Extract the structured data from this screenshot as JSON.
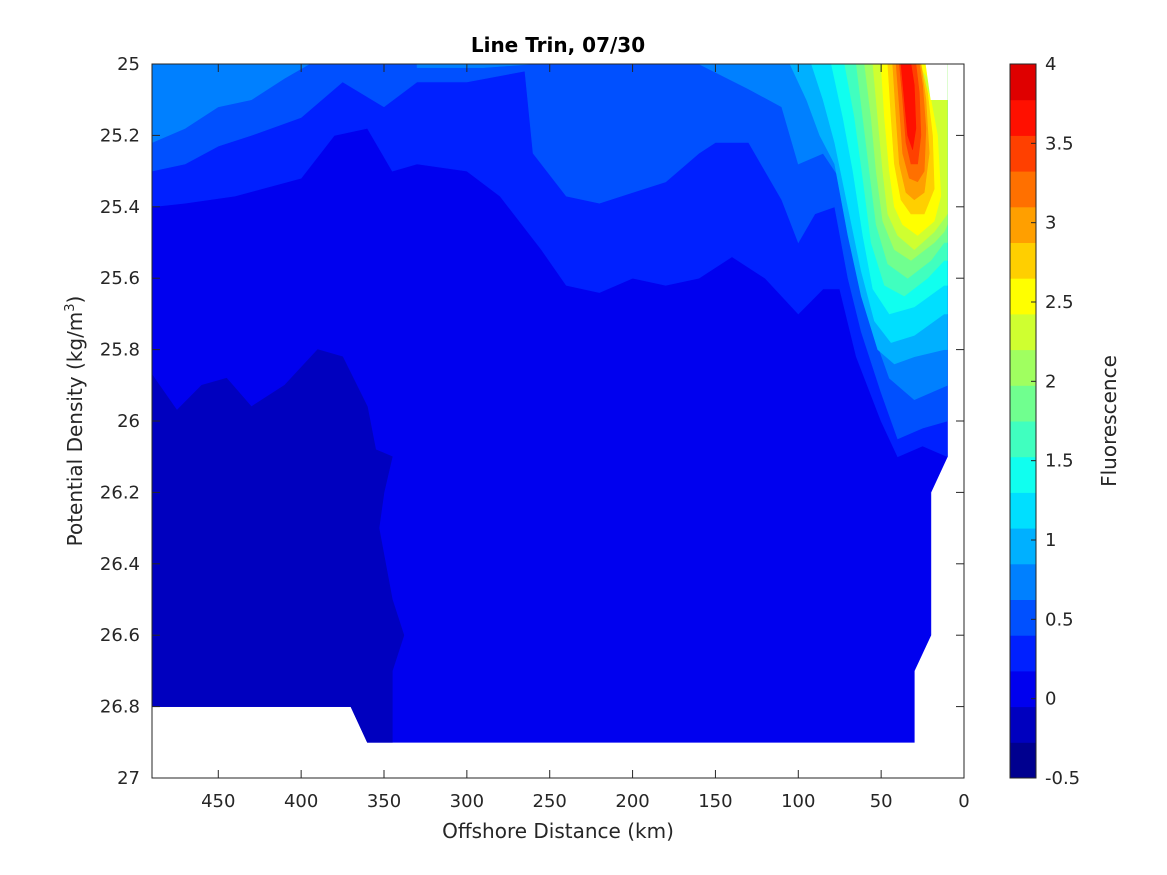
{
  "chart_data": {
    "type": "contourf",
    "title": "Line Trin, 07/30",
    "xlabel": "Offshore Distance (km)",
    "ylabel_main": "Potential Density (kg/m",
    "ylabel_sup": "3",
    "ylabel_close": ")",
    "xlim": [
      490,
      0
    ],
    "ylim": [
      25,
      27
    ],
    "x_reversed": true,
    "y_reversed": true,
    "x_ticks": [
      450,
      400,
      350,
      300,
      250,
      200,
      150,
      100,
      50,
      0
    ],
    "y_ticks": [
      25,
      25.2,
      25.4,
      25.6,
      25.8,
      26,
      26.2,
      26.4,
      26.6,
      26.8,
      27
    ],
    "y_tick_labels": [
      "25",
      "25.2",
      "25.4",
      "25.6",
      "25.8",
      "26",
      "26.2",
      "26.4",
      "26.6",
      "26.8",
      "27"
    ],
    "colorbar": {
      "label": "Fluorescence",
      "range": [
        -0.5,
        4
      ],
      "ticks": [
        -0.5,
        0,
        0.5,
        1,
        1.5,
        2,
        2.5,
        3,
        3.5,
        4
      ],
      "tick_labels": [
        "-0.5",
        "0",
        "0.5",
        "1",
        "1.5",
        "2",
        "2.5",
        "3",
        "3.5",
        "4"
      ],
      "level_step": 0.25,
      "colors": [
        "#00008f",
        "#0000bf",
        "#0000ef",
        "#0020ff",
        "#0050ff",
        "#0080ff",
        "#00b0ff",
        "#00dfff",
        "#10ffef",
        "#40ffbf",
        "#70ff8f",
        "#a0ff60",
        "#cfff30",
        "#ffff00",
        "#ffcf00",
        "#ff9f00",
        "#ff7000",
        "#ff4000",
        "#ff1000",
        "#df0000",
        "#af0000"
      ]
    },
    "regions": [
      {
        "level": 0,
        "points": [
          [
            490,
            25
          ],
          [
            10,
            25
          ],
          [
            10,
            26.1
          ],
          [
            20,
            26.2
          ],
          [
            20,
            26.6
          ],
          [
            30,
            26.7
          ],
          [
            30,
            26.9
          ],
          [
            360,
            26.9
          ],
          [
            370,
            26.8
          ],
          [
            490,
            26.8
          ]
        ]
      },
      {
        "level": -1,
        "points": [
          [
            490,
            25.87
          ],
          [
            475,
            25.97
          ],
          [
            460,
            25.9
          ],
          [
            445,
            25.88
          ],
          [
            430,
            25.96
          ],
          [
            410,
            25.9
          ],
          [
            390,
            25.8
          ],
          [
            375,
            25.82
          ],
          [
            360,
            25.96
          ],
          [
            355,
            26.08
          ],
          [
            345,
            26.1
          ],
          [
            350,
            26.2
          ],
          [
            353,
            26.3
          ],
          [
            345,
            26.5
          ],
          [
            338,
            26.6
          ],
          [
            345,
            26.7
          ],
          [
            345,
            26.9
          ],
          [
            360,
            26.9
          ],
          [
            370,
            26.8
          ],
          [
            490,
            26.8
          ]
        ]
      },
      {
        "level": 1,
        "points": [
          [
            490,
            25
          ],
          [
            490,
            25.4
          ],
          [
            470,
            25.39
          ],
          [
            440,
            25.37
          ],
          [
            400,
            25.32
          ],
          [
            380,
            25.2
          ],
          [
            360,
            25.18
          ],
          [
            345,
            25.3
          ],
          [
            330,
            25.28
          ],
          [
            300,
            25.3
          ],
          [
            280,
            25.37
          ],
          [
            255,
            25.52
          ],
          [
            240,
            25.62
          ],
          [
            220,
            25.64
          ],
          [
            200,
            25.6
          ],
          [
            180,
            25.62
          ],
          [
            160,
            25.6
          ],
          [
            140,
            25.54
          ],
          [
            120,
            25.6
          ],
          [
            100,
            25.7
          ],
          [
            85,
            25.63
          ],
          [
            75,
            25.63
          ],
          [
            65,
            25.82
          ],
          [
            50,
            26
          ],
          [
            40,
            26.1
          ],
          [
            25,
            26.07
          ],
          [
            10,
            26.1
          ],
          [
            10,
            25
          ],
          [
            250,
            25
          ],
          [
            430,
            25
          ]
        ]
      },
      {
        "level": 2,
        "points": [
          [
            490,
            25
          ],
          [
            490,
            25.3
          ],
          [
            470,
            25.28
          ],
          [
            450,
            25.23
          ],
          [
            430,
            25.2
          ],
          [
            400,
            25.15
          ],
          [
            375,
            25.05
          ],
          [
            350,
            25.12
          ],
          [
            330,
            25.05
          ],
          [
            300,
            25.05
          ],
          [
            265,
            25.02
          ],
          [
            260,
            25.25
          ],
          [
            240,
            25.37
          ],
          [
            220,
            25.39
          ],
          [
            200,
            25.36
          ],
          [
            180,
            25.33
          ],
          [
            160,
            25.25
          ],
          [
            150,
            25.22
          ],
          [
            130,
            25.22
          ],
          [
            110,
            25.38
          ],
          [
            100,
            25.5
          ],
          [
            90,
            25.42
          ],
          [
            78,
            25.4
          ],
          [
            70,
            25.6
          ],
          [
            62,
            25.75
          ],
          [
            50,
            25.92
          ],
          [
            40,
            26.05
          ],
          [
            25,
            26.02
          ],
          [
            10,
            26.0
          ],
          [
            10,
            25
          ]
        ]
      },
      {
        "level": 3,
        "points": [
          [
            490,
            25
          ],
          [
            490,
            25.22
          ],
          [
            470,
            25.18
          ],
          [
            450,
            25.12
          ],
          [
            430,
            25.1
          ],
          [
            410,
            25.04
          ],
          [
            395,
            25
          ],
          [
            330,
            25
          ],
          [
            330,
            25.01
          ],
          [
            290,
            25.01
          ],
          [
            260,
            25
          ],
          [
            160,
            25
          ],
          [
            130,
            25.07
          ],
          [
            110,
            25.12
          ],
          [
            100,
            25.28
          ],
          [
            85,
            25.25
          ],
          [
            75,
            25.32
          ],
          [
            65,
            25.55
          ],
          [
            55,
            25.75
          ],
          [
            45,
            25.88
          ],
          [
            30,
            25.94
          ],
          [
            10,
            25.9
          ],
          [
            10,
            25
          ]
        ]
      },
      {
        "level": 4,
        "points": [
          [
            105,
            25
          ],
          [
            95,
            25.1
          ],
          [
            87,
            25.2
          ],
          [
            78,
            25.28
          ],
          [
            70,
            25.48
          ],
          [
            62,
            25.65
          ],
          [
            52,
            25.8
          ],
          [
            42,
            25.84
          ],
          [
            30,
            25.82
          ],
          [
            12,
            25.8
          ],
          [
            10,
            25.8
          ],
          [
            10,
            25
          ]
        ]
      },
      {
        "level": 5,
        "points": [
          [
            92,
            25
          ],
          [
            85,
            25.1
          ],
          [
            78,
            25.22
          ],
          [
            70,
            25.4
          ],
          [
            62,
            25.58
          ],
          [
            54,
            25.72
          ],
          [
            44,
            25.78
          ],
          [
            30,
            25.76
          ],
          [
            12,
            25.7
          ],
          [
            10,
            25.7
          ],
          [
            10,
            25
          ]
        ]
      },
      {
        "level": 6,
        "points": [
          [
            80,
            25
          ],
          [
            73,
            25.15
          ],
          [
            67,
            25.3
          ],
          [
            61,
            25.48
          ],
          [
            55,
            25.63
          ],
          [
            45,
            25.7
          ],
          [
            30,
            25.68
          ],
          [
            12,
            25.62
          ],
          [
            10,
            25.62
          ],
          [
            10,
            25
          ]
        ]
      },
      {
        "level": 7,
        "points": [
          [
            72,
            25
          ],
          [
            66,
            25.15
          ],
          [
            61,
            25.32
          ],
          [
            56,
            25.5
          ],
          [
            48,
            25.62
          ],
          [
            36,
            25.65
          ],
          [
            22,
            25.6
          ],
          [
            12,
            25.55
          ],
          [
            10,
            25.55
          ],
          [
            10,
            25
          ]
        ]
      },
      {
        "level": 8,
        "points": [
          [
            65,
            25
          ],
          [
            61,
            25.15
          ],
          [
            57,
            25.3
          ],
          [
            53,
            25.45
          ],
          [
            46,
            25.56
          ],
          [
            34,
            25.6
          ],
          [
            20,
            25.55
          ],
          [
            12,
            25.5
          ],
          [
            10,
            25.5
          ],
          [
            10,
            25
          ]
        ]
      },
      {
        "level": 9,
        "points": [
          [
            60,
            25
          ],
          [
            56,
            25.15
          ],
          [
            53,
            25.3
          ],
          [
            49,
            25.44
          ],
          [
            42,
            25.52
          ],
          [
            32,
            25.55
          ],
          [
            18,
            25.5
          ],
          [
            12,
            25.47
          ],
          [
            10,
            25.45
          ],
          [
            10,
            25
          ]
        ]
      },
      {
        "level": 10,
        "points": [
          [
            55,
            25
          ],
          [
            52,
            25.15
          ],
          [
            49,
            25.3
          ],
          [
            46,
            25.42
          ],
          [
            40,
            25.48
          ],
          [
            30,
            25.52
          ],
          [
            18,
            25.47
          ],
          [
            10,
            25.42
          ],
          [
            10,
            25
          ]
        ]
      },
      {
        "level": 11,
        "points": [
          [
            50,
            25
          ],
          [
            48,
            25.15
          ],
          [
            45,
            25.3
          ],
          [
            42,
            25.4
          ],
          [
            37,
            25.45
          ],
          [
            28,
            25.48
          ],
          [
            18,
            25.44
          ],
          [
            14,
            25.37
          ],
          [
            16,
            25.2
          ],
          [
            20,
            25.1
          ],
          [
            28,
            25
          ],
          [
            20,
            25.05
          ],
          [
            10,
            25
          ],
          [
            50,
            25
          ]
        ]
      },
      {
        "level": 12,
        "points": [
          [
            46,
            25
          ],
          [
            44,
            25.15
          ],
          [
            42,
            25.28
          ],
          [
            38,
            25.38
          ],
          [
            32,
            25.42
          ],
          [
            24,
            25.42
          ],
          [
            18,
            25.35
          ],
          [
            19,
            25.2
          ],
          [
            22,
            25.08
          ],
          [
            26,
            25
          ]
        ]
      },
      {
        "level": 13,
        "points": [
          [
            43,
            25
          ],
          [
            41,
            25.15
          ],
          [
            39,
            25.28
          ],
          [
            35,
            25.36
          ],
          [
            30,
            25.38
          ],
          [
            24,
            25.36
          ],
          [
            21,
            25.25
          ],
          [
            23,
            25.1
          ],
          [
            26,
            25
          ]
        ]
      },
      {
        "level": 14,
        "points": [
          [
            41,
            25
          ],
          [
            39,
            25.12
          ],
          [
            37,
            25.25
          ],
          [
            33,
            25.32
          ],
          [
            28,
            25.33
          ],
          [
            24,
            25.3
          ],
          [
            23,
            25.18
          ],
          [
            25,
            25.06
          ],
          [
            27,
            25
          ]
        ]
      },
      {
        "level": 15,
        "points": [
          [
            39,
            25
          ],
          [
            37,
            25.1
          ],
          [
            35,
            25.22
          ],
          [
            32,
            25.28
          ],
          [
            28,
            25.28
          ],
          [
            26,
            25.2
          ],
          [
            27,
            25.08
          ],
          [
            29,
            25
          ]
        ]
      },
      {
        "level": 16,
        "points": [
          [
            38,
            25
          ],
          [
            36,
            25.1
          ],
          [
            34,
            25.2
          ],
          [
            31,
            25.24
          ],
          [
            29,
            25.18
          ],
          [
            30,
            25.06
          ],
          [
            32,
            25
          ]
        ]
      }
    ],
    "blank_regions": [
      {
        "points": [
          [
            23,
            25
          ],
          [
            10,
            25
          ],
          [
            10,
            25.1
          ],
          [
            20,
            25.1
          ]
        ]
      }
    ]
  }
}
